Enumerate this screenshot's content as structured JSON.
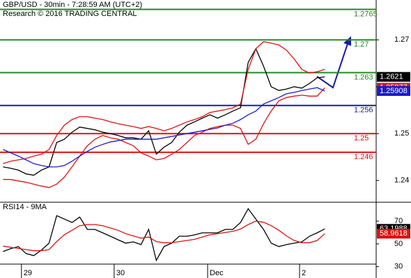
{
  "chart_data": [
    {
      "type": "line",
      "title": "GBP/USD - 30min - 7:28:59 AM (UTC+2)",
      "subtitle": "Research © 2016 TRADING CENTRAL",
      "xlim": [
        -0.4,
        48.7
      ],
      "xticks": [
        {
          "value": 2.4,
          "label": "29"
        },
        {
          "value": 14.5,
          "label": "30"
        },
        {
          "value": 26.7,
          "label": "Dec"
        },
        {
          "value": 38.7,
          "label": "2"
        }
      ],
      "ylim": [
        1.2355,
        1.2785
      ],
      "yticks": [
        1.24,
        1.25,
        1.26,
        1.27
      ],
      "levels": [
        {
          "value": 1.2765,
          "color": "#1f8a1f"
        },
        {
          "value": 1.27,
          "color": "#1f8a1f"
        },
        {
          "value": 1.263,
          "color": "#1f8a1f"
        },
        {
          "value": 1.256,
          "color": "#1a1aa8"
        },
        {
          "value": 1.25,
          "color": "#dd1111"
        },
        {
          "value": 1.246,
          "color": "#dd1111"
        }
      ],
      "series": [
        {
          "color": "#000000",
          "flag": true,
          "values": [
            1.2429,
            1.2426,
            1.2422,
            1.2414,
            1.2411,
            1.2422,
            1.2429,
            1.2481,
            1.2488,
            1.2503,
            1.2514,
            1.2511,
            1.2508,
            1.2503,
            1.25,
            1.2496,
            1.2491,
            1.2491,
            1.2488,
            1.2506,
            1.2456,
            1.2471,
            1.2481,
            1.2503,
            1.2518,
            1.2525,
            1.2533,
            1.254,
            1.2533,
            1.254,
            1.2548,
            1.2555,
            1.2652,
            1.2681,
            1.2644,
            1.26,
            1.2592,
            1.2595,
            1.26,
            1.2597,
            1.2607,
            1.2619,
            1.2621
          ]
        },
        {
          "color": "#dd1111",
          "flag": false,
          "values": [
            1.2436,
            1.2441,
            1.2444,
            1.2447,
            1.2452,
            1.2456,
            1.2466,
            1.2496,
            1.2518,
            1.253,
            1.2536,
            1.2536,
            1.2533,
            1.253,
            1.2525,
            1.2521,
            1.2518,
            1.2515,
            1.2511,
            1.2515,
            1.2511,
            1.2506,
            1.2511,
            1.2518,
            1.2525,
            1.253,
            1.2536,
            1.2545,
            1.2548,
            1.2551,
            1.2555,
            1.2563,
            1.2637,
            1.2681,
            1.2696,
            1.2693,
            1.2689,
            1.2678,
            1.2659,
            1.2637,
            1.2629,
            1.2632,
            1.2637
          ]
        },
        {
          "color": "#dd1111",
          "flag": true,
          "values": [
            1.2402,
            1.2402,
            1.2399,
            1.2396,
            1.2392,
            1.2388,
            1.2385,
            1.2392,
            1.2407,
            1.2429,
            1.2452,
            1.2474,
            1.2488,
            1.2496,
            1.2491,
            1.2488,
            1.2481,
            1.2474,
            1.2459,
            1.2452,
            1.2444,
            1.2447,
            1.2456,
            1.2466,
            1.2481,
            1.2496,
            1.2503,
            1.2511,
            1.2515,
            1.2518,
            1.2518,
            1.2511,
            1.2477,
            1.2488,
            1.2521,
            1.2548,
            1.257,
            1.2577,
            1.258,
            1.2582,
            1.258,
            1.258,
            1.25977
          ]
        },
        {
          "color": "#1a1acc",
          "flag": true,
          "values": [
            1.2466,
            1.2459,
            1.2452,
            1.2444,
            1.2436,
            1.2432,
            1.2429,
            1.2429,
            1.2432,
            1.2441,
            1.2452,
            1.2462,
            1.2471,
            1.2477,
            1.2482,
            1.2485,
            1.2488,
            1.2488,
            1.2488,
            1.2488,
            1.2488,
            1.2491,
            1.2494,
            1.2497,
            1.25,
            1.2503,
            1.2506,
            1.2509,
            1.2512,
            1.2518,
            1.2522,
            1.253,
            1.254,
            1.2548,
            1.2563,
            1.257,
            1.2577,
            1.2585,
            1.2588,
            1.2592,
            1.2595,
            1.2598,
            1.25908
          ]
        }
      ]
    },
    {
      "type": "line",
      "title": "RSI14 - 9MA",
      "xlim": [
        -0.4,
        48.7
      ],
      "ylim": [
        20,
        86
      ],
      "yticks": [
        30,
        50,
        70
      ],
      "series": [
        {
          "color": "#000000",
          "flag": true,
          "values": [
            43.3,
            45.8,
            47.6,
            41.5,
            39.7,
            44.5,
            50.6,
            74.8,
            71.8,
            68.8,
            73.6,
            62.7,
            62.7,
            59.7,
            56.7,
            53.6,
            50.6,
            51.8,
            49.4,
            62.7,
            35.5,
            47.6,
            50.6,
            56.7,
            56.7,
            57.9,
            59.7,
            59.7,
            59.7,
            62.7,
            62.7,
            68.8,
            80.9,
            71.8,
            62.7,
            50.6,
            47.6,
            49.4,
            50.6,
            51.8,
            56.7,
            59.7,
            63.1988
          ]
        },
        {
          "color": "#dd1111",
          "flag": true,
          "values": [
            48,
            47,
            46,
            45,
            44,
            44,
            45,
            52,
            58,
            62,
            66,
            67,
            67,
            66,
            64,
            62,
            59,
            57,
            55,
            56,
            52,
            51,
            51,
            52,
            53,
            54,
            56,
            58,
            59,
            60,
            61,
            63,
            67,
            70,
            69,
            66,
            62,
            57,
            53,
            51,
            51,
            53,
            58.9618
          ]
        }
      ]
    }
  ]
}
